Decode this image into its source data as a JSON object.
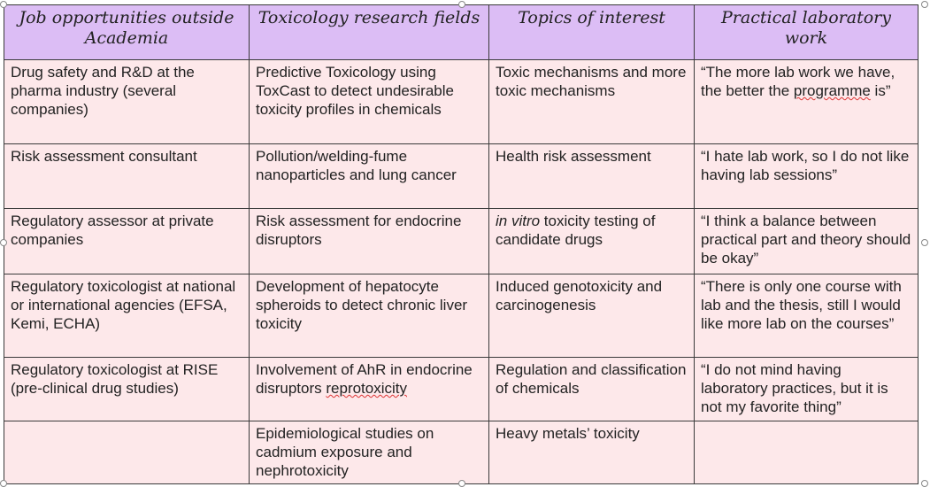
{
  "headers": [
    "Job opportunities outside Academia",
    "Toxicology research fields",
    "Topics of interest",
    "Practical laboratory work"
  ],
  "rows": [
    [
      "Drug safety and R&D at the pharma industry (several companies)",
      "Predictive Toxicology using ToxCast to detect undesirable toxicity profiles in chemicals",
      "Toxic mechanisms and more toxic mechanisms",
      "“The more lab work we have, the better the programme is”"
    ],
    [
      "Risk assessment consultant",
      "Pollution/welding-fume nanoparticles and lung cancer",
      "Health risk assessment",
      "“I hate lab work, so I do not like having lab sessions”"
    ],
    [
      "Regulatory assessor at private companies",
      "Risk assessment for endocrine disruptors",
      "in vitro toxicity testing of candidate drugs",
      "“I think a balance between practical part and theory should be okay”"
    ],
    [
      "Regulatory toxicologist at national or international agencies (EFSA, Kemi, ECHA)",
      "Development of hepatocyte spheroids to detect chronic liver toxicity",
      "Induced genotoxicity and carcinogenesis",
      "“There is only one course with lab and the thesis, still I would like more lab on the courses”"
    ],
    [
      "Regulatory toxicologist at RISE (pre-clinical drug studies)",
      "Involvement of AhR in endocrine disruptors reprotoxicity",
      "Regulation and classification of chemicals",
      "“I do not mind having laboratory practices, but it is not my favorite thing”"
    ],
    [
      "",
      "Epidemiological studies on cadmium exposure and nephrotoxicity",
      "Heavy metals’ toxicity",
      ""
    ]
  ],
  "colors": {
    "header_bg": "#dcbdf5",
    "cell_bg": "#fde8ea",
    "border": "#3a3a3a"
  }
}
